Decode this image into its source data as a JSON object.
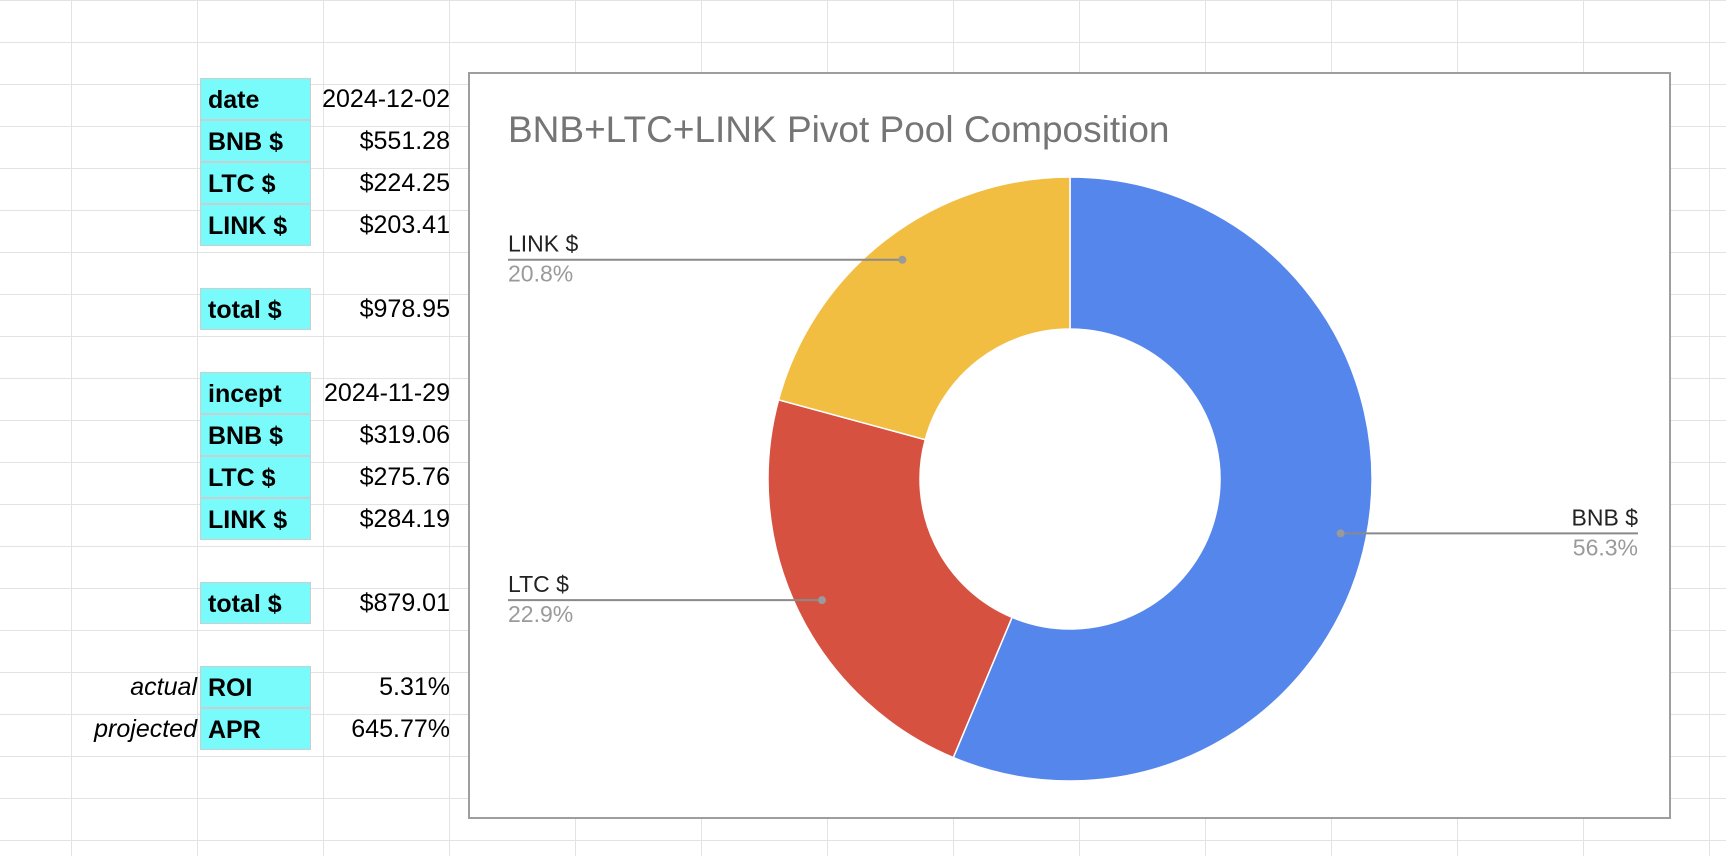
{
  "table": {
    "current": [
      {
        "label": "date",
        "value": "2024-12-02"
      },
      {
        "label": "BNB $",
        "value": "$551.28"
      },
      {
        "label": "LTC $",
        "value": "$224.25"
      },
      {
        "label": "LINK $",
        "value": "$203.41"
      }
    ],
    "current_total": {
      "label": "total $",
      "value": "$978.95"
    },
    "inception": [
      {
        "label": "incept",
        "value": "2024-11-29"
      },
      {
        "label": "BNB $",
        "value": "$319.06"
      },
      {
        "label": "LTC $",
        "value": "$275.76"
      },
      {
        "label": "LINK $",
        "value": "$284.19"
      }
    ],
    "inception_total": {
      "label": "total $",
      "value": "$879.01"
    },
    "roi": {
      "side_label": "actual",
      "label": "ROI",
      "value": "5.31%"
    },
    "apr": {
      "side_label": "projected",
      "label": "APR",
      "value": "645.77%"
    }
  },
  "chart_data": {
    "type": "pie",
    "donut": true,
    "title": "BNB+LTC+LINK Pivot Pool Composition",
    "slices": [
      {
        "label": "BNB $",
        "value": 551.28,
        "percent_label": "56.3%",
        "color": "#5586ec"
      },
      {
        "label": "LTC $",
        "value": 224.25,
        "percent_label": "22.9%",
        "color": "#d75140"
      },
      {
        "label": "LINK $",
        "value": 203.41,
        "percent_label": "20.8%",
        "color": "#f2be42"
      }
    ],
    "legend": "none",
    "label_color": "#222222",
    "percent_color": "#9a9a9a",
    "title_color": "#757575"
  }
}
